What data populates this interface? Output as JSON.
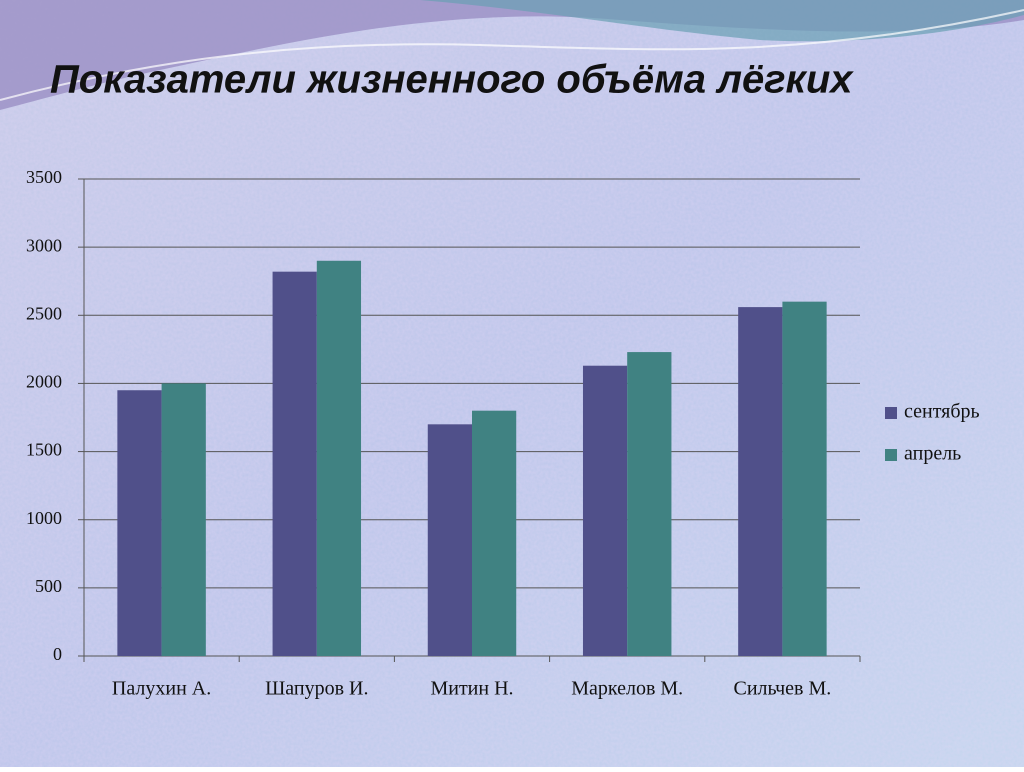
{
  "chart_data": {
    "type": "bar",
    "title": "Показатели жизненного объёма лёгких",
    "categories": [
      "Палухин А.",
      "Шапуров И.",
      "Митин Н.",
      "Маркелов М.",
      "Сильчев М."
    ],
    "series": [
      {
        "name": "сентябрь",
        "color": "#50508a",
        "values": [
          1950,
          2820,
          1700,
          2130,
          2560
        ]
      },
      {
        "name": "апрель",
        "color": "#408282",
        "values": [
          2000,
          2900,
          1800,
          2230,
          2600
        ]
      }
    ],
    "ylim": [
      0,
      3500
    ],
    "yticks": [
      0,
      500,
      1000,
      1500,
      2000,
      2500,
      3000,
      3500
    ],
    "grid": true,
    "legend": "right"
  }
}
